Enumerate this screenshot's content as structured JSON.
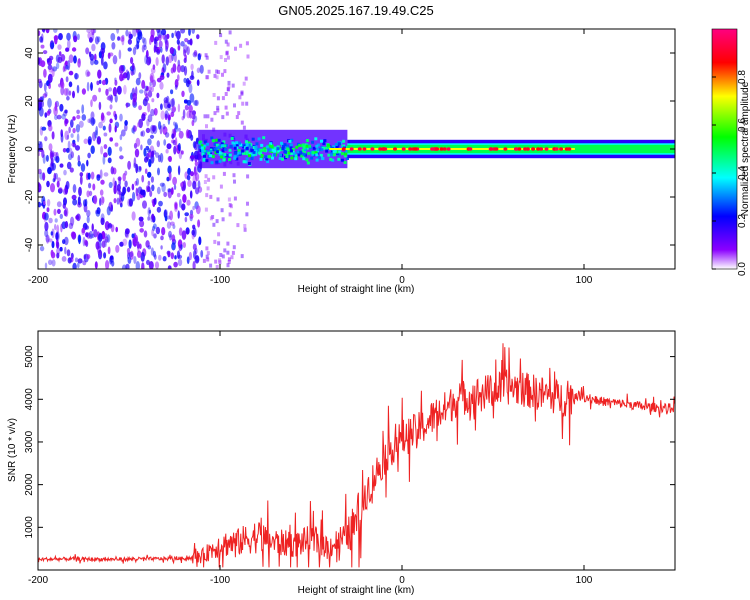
{
  "figure_title": "GN05.2025.167.19.49.C25",
  "chart_data": [
    {
      "type": "heatmap",
      "xlabel": "Height of straight line (km)",
      "ylabel": "Frequency (Hz)",
      "xlim": [
        -200,
        150
      ],
      "ylim": [
        -50,
        50
      ],
      "x_ticks": [
        -200,
        -100,
        0,
        100
      ],
      "y_ticks": [
        -40,
        -20,
        0,
        20,
        40
      ],
      "grid": false,
      "colorbar": {
        "label": "Normalized spectral amplitude",
        "range": [
          0,
          1
        ],
        "ticks": [
          0.0,
          0.2,
          0.4,
          0.6,
          0.8
        ],
        "tick_labels": [
          "0.0",
          "0.2",
          "0.4",
          "0.6",
          "0.8"
        ],
        "colormap": [
          "#ffffff",
          "#8b00ff",
          "#0000ff",
          "#00ffff",
          "#00ff00",
          "#ffff00",
          "#ff0000",
          "#ff0080"
        ]
      },
      "regions": [
        {
          "x_range": [
            -200,
            -110
          ],
          "freq_range": [
            -50,
            50
          ],
          "amplitude": 0.15
        },
        {
          "x_range": [
            -112,
            -30
          ],
          "freq_range": [
            -8,
            8
          ],
          "amplitude": 0.3
        },
        {
          "x_range": [
            -30,
            150
          ],
          "freq_range": [
            -3,
            3
          ],
          "amplitude": 0.5
        },
        {
          "x_range": [
            -40,
            95
          ],
          "freq_range": [
            -0.5,
            0.5
          ],
          "amplitude": 0.95
        }
      ]
    },
    {
      "type": "line",
      "xlabel": "Height of straight line (km)",
      "ylabel": "SNR (10 * v/v)",
      "xlim": [
        -200,
        150
      ],
      "ylim": [
        0,
        5600
      ],
      "x_ticks": [
        -200,
        -100,
        0,
        100
      ],
      "y_ticks": [
        1000,
        2000,
        3000,
        4000,
        5000
      ],
      "grid": false,
      "color": "#ee2222",
      "series": [
        {
          "x": [
            -200,
            -180,
            -160,
            -140,
            -120,
            -110,
            -100,
            -90,
            -80,
            -70,
            -60,
            -50,
            -40,
            -30,
            -25,
            -20,
            -15,
            -10,
            -5,
            0,
            5,
            10,
            15,
            20,
            25,
            30,
            40,
            50,
            60,
            70,
            80,
            90,
            95,
            100,
            110,
            120,
            130,
            140,
            150
          ],
          "values": [
            250,
            260,
            250,
            260,
            270,
            320,
            600,
            650,
            800,
            650,
            600,
            700,
            550,
            800,
            1100,
            1800,
            2200,
            2600,
            2900,
            3100,
            3200,
            3300,
            3500,
            3700,
            3800,
            4000,
            4100,
            4200,
            4300,
            4200,
            4100,
            4000,
            4100,
            4050,
            3950,
            3900,
            3850,
            3800,
            3800
          ]
        }
      ]
    }
  ]
}
